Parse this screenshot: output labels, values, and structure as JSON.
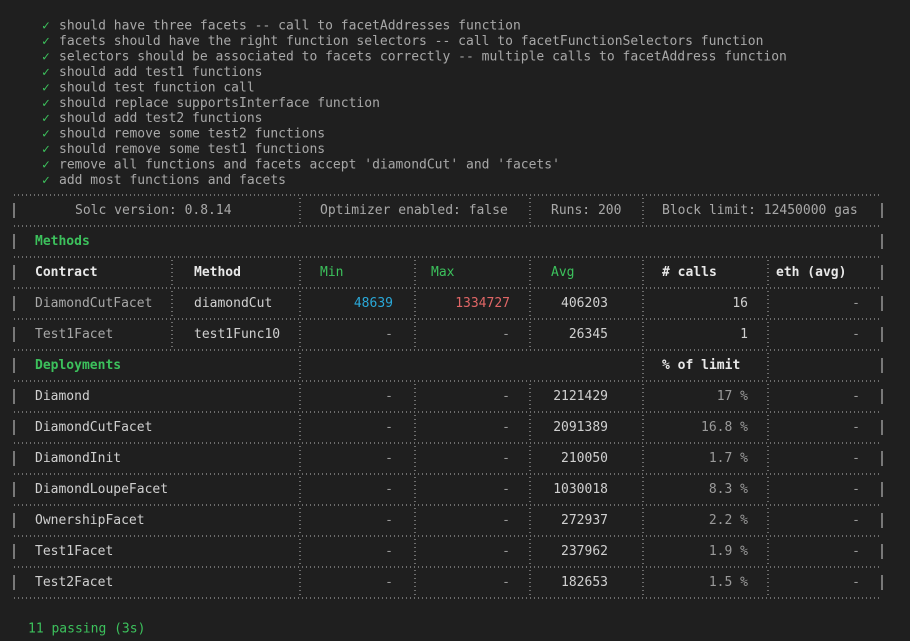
{
  "check": "✓",
  "tests": [
    "should have three facets -- call to facetAddresses function",
    "facets should have the right function selectors -- call to facetFunctionSelectors function",
    "selectors should be associated to facets correctly -- multiple calls to facetAddress function",
    "should add test1 functions",
    "should test function call",
    "should replace supportsInterface function",
    "should add test2 functions",
    "should remove some test2 functions",
    "should remove some test1 functions",
    "remove all functions and facets accept 'diamondCut' and 'facets'",
    "add most functions and facets"
  ],
  "table": {
    "header": [
      "Solc version: 0.8.14",
      "Optimizer enabled: false",
      "Runs: 200",
      "Block limit: 12450000 gas"
    ],
    "methods_title": "Methods",
    "method_columns": [
      "Contract",
      "Method",
      "Min",
      "Max",
      "Avg",
      "# calls",
      "eth (avg)"
    ],
    "method_rows": [
      [
        "DiamondCutFacet",
        "diamondCut",
        "48639",
        "1334727",
        "406203",
        "16",
        "-"
      ],
      [
        "Test1Facet",
        "test1Func10",
        "-",
        "-",
        "26345",
        "1",
        "-"
      ]
    ],
    "deployments_title": "Deployments",
    "deployments_pct": "% of limit",
    "deployment_rows": [
      [
        "Diamond",
        "-",
        "-",
        "2121429",
        "17 %",
        "-"
      ],
      [
        "DiamondCutFacet",
        "-",
        "-",
        "2091389",
        "16.8 %",
        "-"
      ],
      [
        "DiamondInit",
        "-",
        "-",
        "210050",
        "1.7 %",
        "-"
      ],
      [
        "DiamondLoupeFacet",
        "-",
        "-",
        "1030018",
        "8.3 %",
        "-"
      ],
      [
        "OwnershipFacet",
        "-",
        "-",
        "272937",
        "2.2 %",
        "-"
      ],
      [
        "Test1Facet",
        "-",
        "-",
        "237962",
        "1.9 %",
        "-"
      ],
      [
        "Test2Facet",
        "-",
        "-",
        "182653",
        "1.5 %",
        "-"
      ]
    ]
  },
  "summary": "11 passing (3s)"
}
